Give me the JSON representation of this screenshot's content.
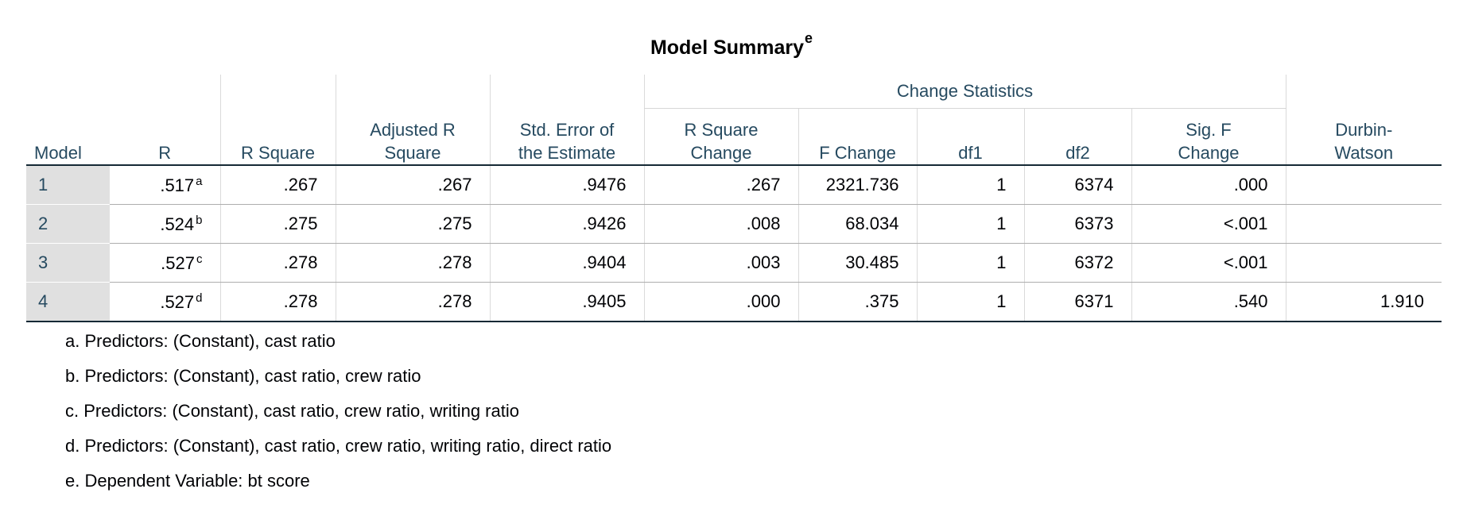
{
  "title": "Model Summary",
  "title_note": "e",
  "change_statistics_label": "Change Statistics",
  "headers": {
    "model": "Model",
    "r": "R",
    "r_square": "R Square",
    "adj_r_square_1": "Adjusted R",
    "adj_r_square_2": "Square",
    "std_error_1": "Std. Error of",
    "std_error_2": "the Estimate",
    "r_square_change_1": "R Square",
    "r_square_change_2": "Change",
    "f_change": "F Change",
    "df1": "df1",
    "df2": "df2",
    "sig_f_change_1": "Sig. F",
    "sig_f_change_2": "Change",
    "durbin_watson_1": "Durbin-",
    "durbin_watson_2": "Watson"
  },
  "rows": [
    {
      "model": "1",
      "r": ".517",
      "r_note": "a",
      "r_square": ".267",
      "adj_r_square": ".267",
      "std_error": ".9476",
      "r_square_change": ".267",
      "f_change": "2321.736",
      "df1": "1",
      "df2": "6374",
      "sig_f_change": ".000",
      "durbin_watson": ""
    },
    {
      "model": "2",
      "r": ".524",
      "r_note": "b",
      "r_square": ".275",
      "adj_r_square": ".275",
      "std_error": ".9426",
      "r_square_change": ".008",
      "f_change": "68.034",
      "df1": "1",
      "df2": "6373",
      "sig_f_change": "<.001",
      "durbin_watson": ""
    },
    {
      "model": "3",
      "r": ".527",
      "r_note": "c",
      "r_square": ".278",
      "adj_r_square": ".278",
      "std_error": ".9404",
      "r_square_change": ".003",
      "f_change": "30.485",
      "df1": "1",
      "df2": "6372",
      "sig_f_change": "<.001",
      "durbin_watson": ""
    },
    {
      "model": "4",
      "r": ".527",
      "r_note": "d",
      "r_square": ".278",
      "adj_r_square": ".278",
      "std_error": ".9405",
      "r_square_change": ".000",
      "f_change": ".375",
      "df1": "1",
      "df2": "6371",
      "sig_f_change": ".540",
      "durbin_watson": "1.910"
    }
  ],
  "footnotes": [
    "a. Predictors: (Constant), cast ratio",
    "b. Predictors: (Constant), cast ratio, crew ratio",
    "c. Predictors: (Constant), cast ratio, crew ratio, writing ratio",
    "d. Predictors: (Constant), cast ratio, crew ratio, writing ratio, direct ratio",
    "e. Dependent Variable: bt score"
  ],
  "colors": {
    "header_text": "#264a60",
    "body_text": "#010205",
    "model_column_bg": "#e0e0e0",
    "heavy_rule": "#152935"
  }
}
